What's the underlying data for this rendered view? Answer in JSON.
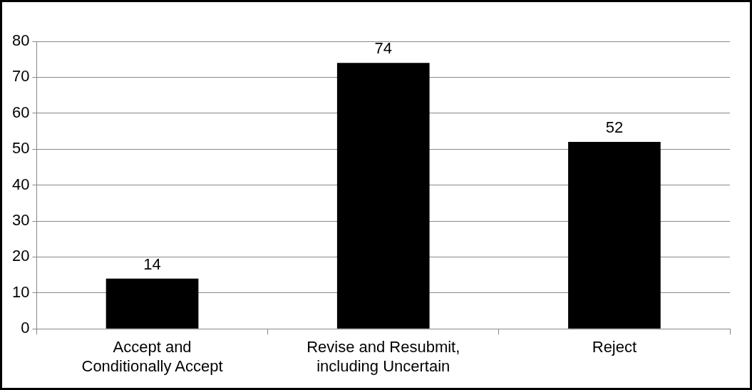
{
  "chart_data": {
    "type": "bar",
    "categories": [
      "Accept and Conditionally Accept",
      "Revise and Resubmit, including Uncertain",
      "Reject"
    ],
    "values": [
      14,
      74,
      52
    ],
    "color": "#000000",
    "ylim": [
      0,
      80
    ],
    "yticks": [
      0,
      10,
      20,
      30,
      40,
      50,
      60,
      70,
      80
    ],
    "grid": "y",
    "data_labels": true,
    "legend": false
  }
}
